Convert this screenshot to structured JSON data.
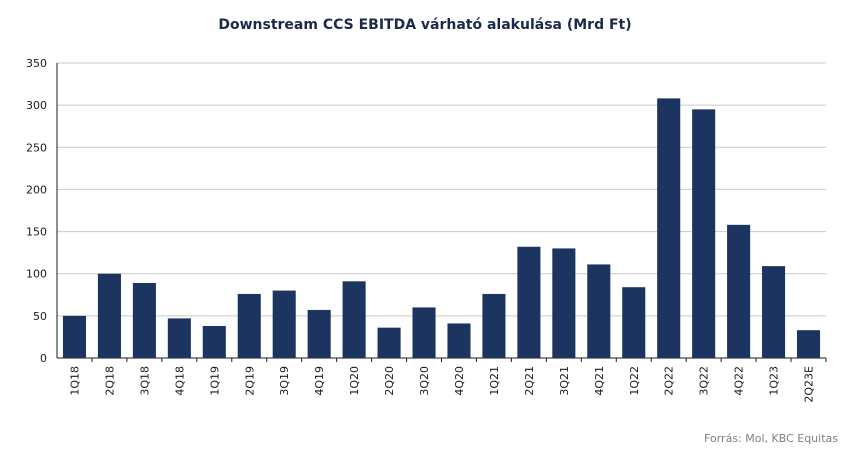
{
  "chart_data": {
    "type": "bar",
    "title": "Downstream CCS EBITDA várható alakulása (Mrd Ft)",
    "categories": [
      "1Q18",
      "2Q18",
      "3Q18",
      "4Q18",
      "1Q19",
      "2Q19",
      "3Q19",
      "4Q19",
      "1Q20",
      "2Q20",
      "3Q20",
      "4Q20",
      "1Q21",
      "2Q21",
      "3Q21",
      "4Q21",
      "1Q22",
      "2Q22",
      "3Q22",
      "4Q22",
      "1Q23",
      "2Q23E"
    ],
    "values": [
      50,
      100,
      89,
      47,
      38,
      76,
      80,
      57,
      91,
      36,
      60,
      41,
      76,
      132,
      130,
      111,
      84,
      308,
      295,
      158,
      109,
      33
    ],
    "ylim": [
      0,
      350
    ],
    "yticks": [
      0,
      50,
      100,
      150,
      200,
      250,
      300,
      350
    ],
    "xlabel": "",
    "ylabel": "",
    "grid": true,
    "bar_color": "#1b3560"
  },
  "source_text": "Forrás: Mol, KBC Equitas"
}
